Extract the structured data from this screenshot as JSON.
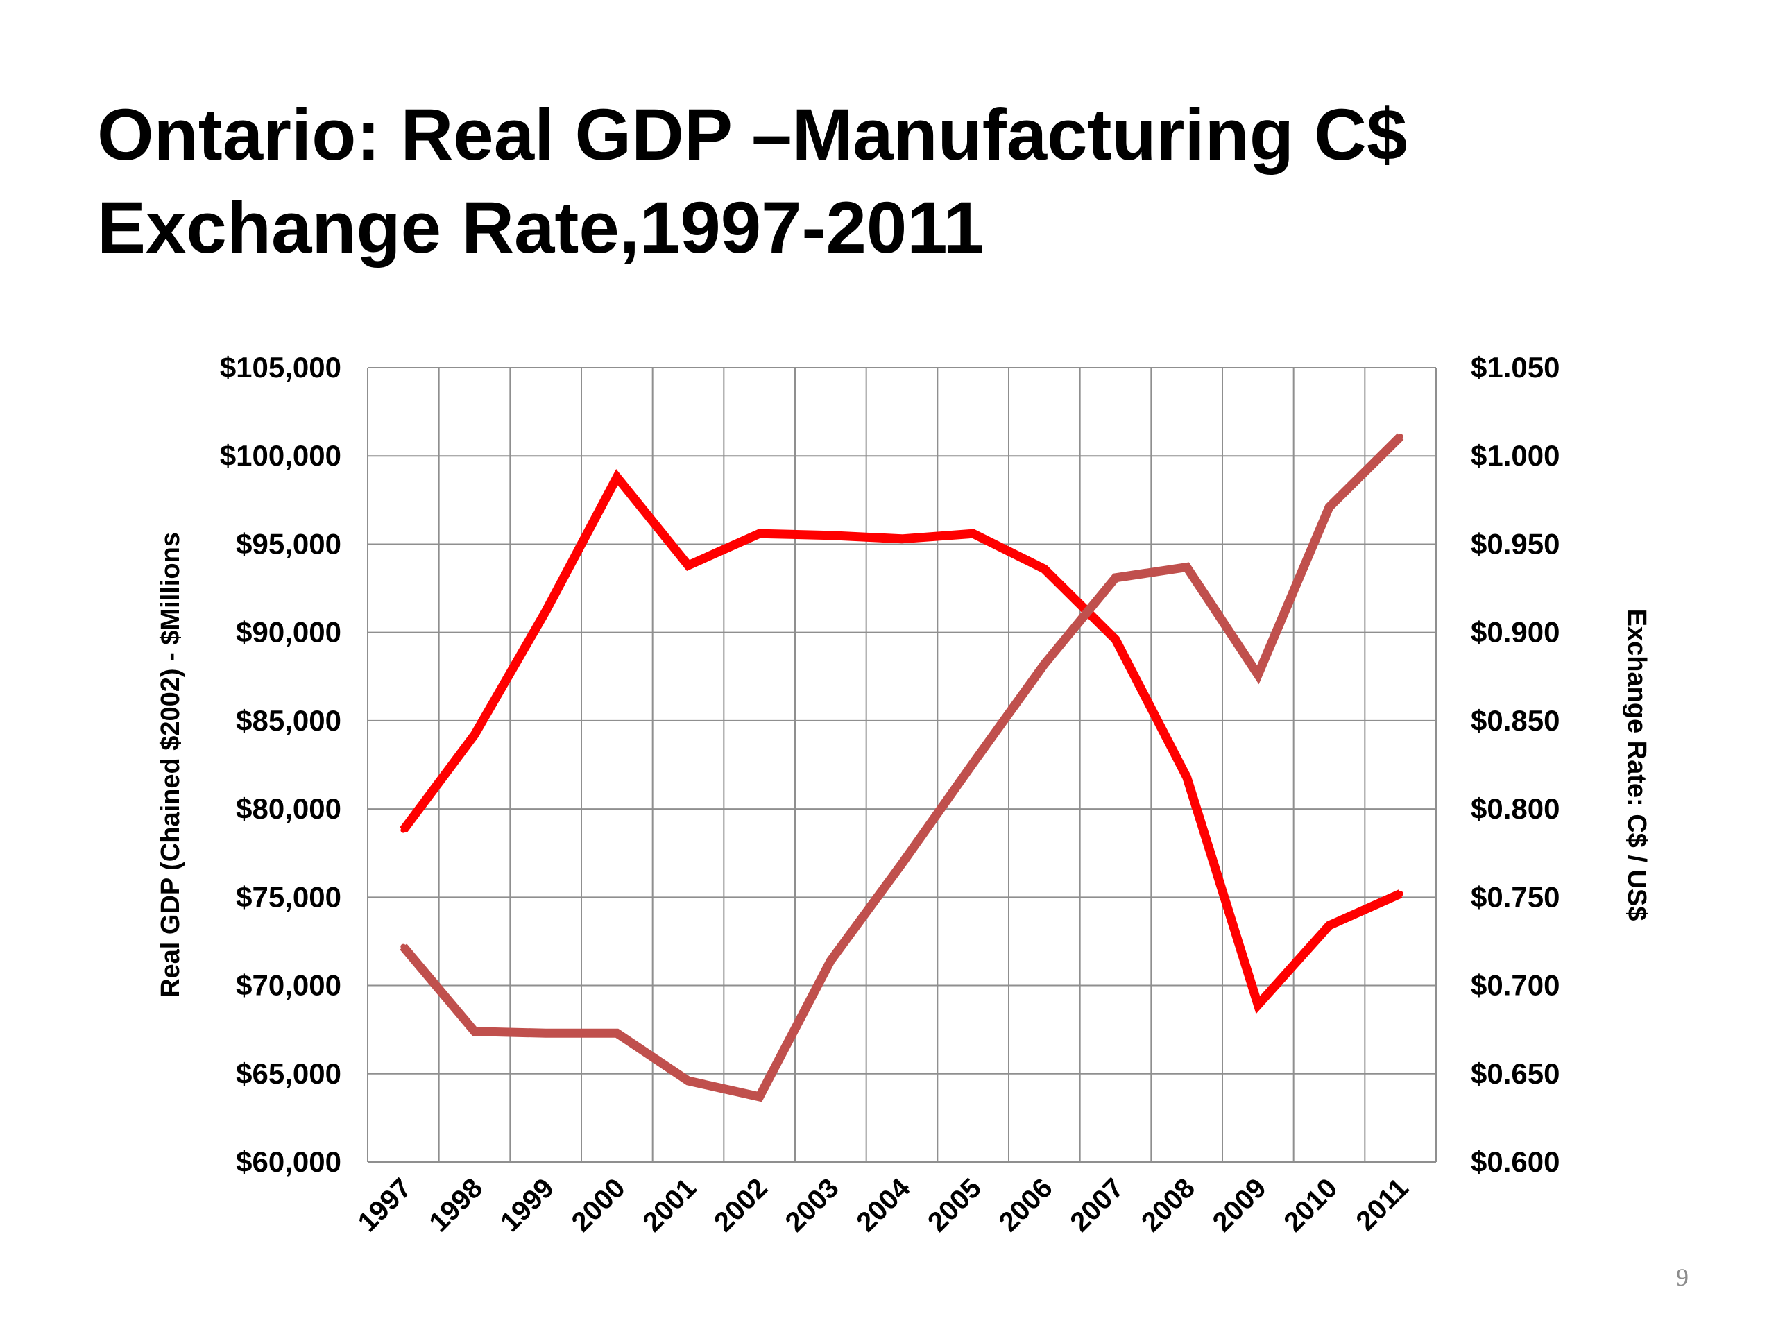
{
  "slide": {
    "title_line1": "Ontario: Real GDP –Manufacturing C$",
    "title_line2": "Exchange Rate,1997-2011",
    "page_number": "9"
  },
  "chart_data": {
    "type": "line",
    "categories": [
      "1997",
      "1998",
      "1999",
      "2000",
      "2001",
      "2002",
      "2003",
      "2004",
      "2005",
      "2006",
      "2007",
      "2008",
      "2009",
      "2010",
      "2011"
    ],
    "ylabel": "Real GDP (Chained $2002) - $Millions",
    "y2label": "Exchange Rate: C$ / US$",
    "ylim": [
      60000,
      105000
    ],
    "y2lim": [
      0.6,
      1.05
    ],
    "yticks": [
      "$60,000",
      "$65,000",
      "$70,000",
      "$75,000",
      "$80,000",
      "$85,000",
      "$90,000",
      "$95,000",
      "$100,000",
      "$105,000"
    ],
    "y2ticks": [
      "$0.600",
      "$0.650",
      "$0.700",
      "$0.750",
      "$0.800",
      "$0.850",
      "$0.900",
      "$0.950",
      "$1.000",
      "$1.050"
    ],
    "grid": true,
    "legend": "none",
    "series": [
      {
        "axis": "left",
        "color": "#ff0000",
        "values": [
          78800,
          84200,
          91200,
          98800,
          93800,
          95600,
          95500,
          95300,
          95600,
          93600,
          89600,
          81800,
          68900,
          73400,
          75200
        ]
      },
      {
        "axis": "right",
        "color": "#c0504d",
        "values": [
          0.722,
          0.674,
          0.673,
          0.673,
          0.646,
          0.637,
          0.714,
          0.769,
          0.826,
          0.882,
          0.931,
          0.937,
          0.876,
          0.971,
          1.011
        ]
      }
    ]
  }
}
